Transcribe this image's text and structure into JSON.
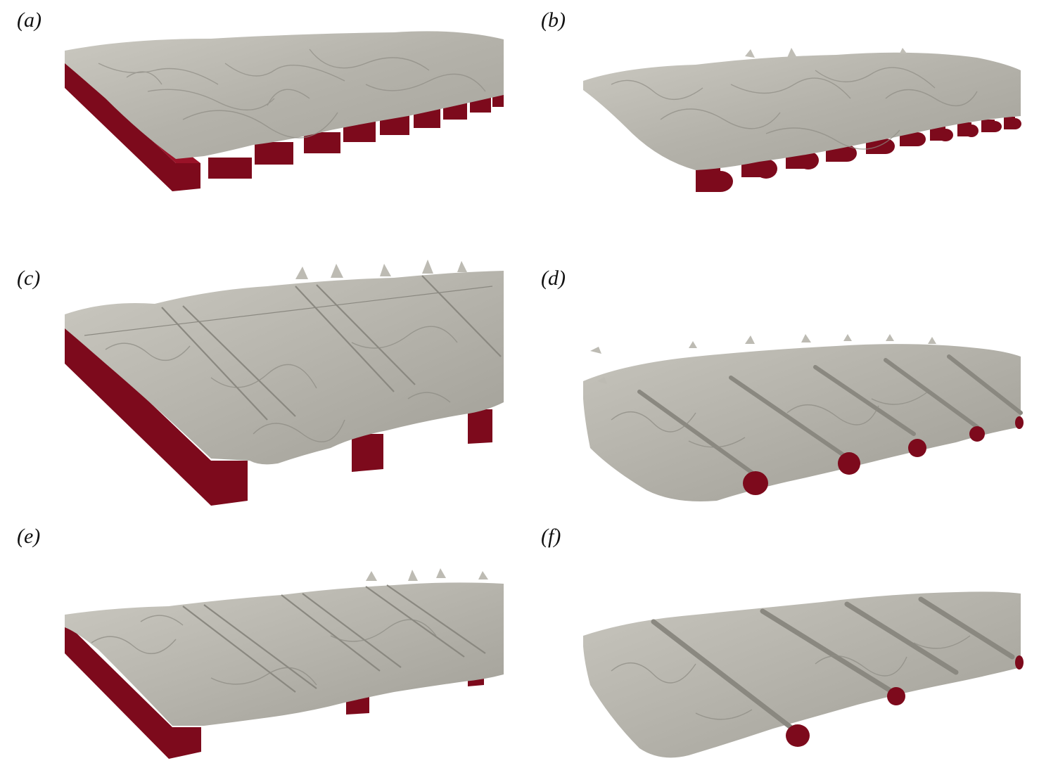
{
  "figure": {
    "panels": [
      {
        "id": "a",
        "label": "(a)",
        "element_shape": "square-bar",
        "element_colour": "#7d0a1c",
        "surface_colour": "#bdbbb3",
        "elements_visible": 11,
        "raised_ridges": false
      },
      {
        "id": "b",
        "label": "(b)",
        "element_shape": "cylinder",
        "element_colour": "#7d0a1c",
        "surface_colour": "#bdbbb3",
        "elements_visible": 10,
        "raised_ridges": false
      },
      {
        "id": "c",
        "label": "(c)",
        "element_shape": "square-bar",
        "element_colour": "#7d0a1c",
        "surface_colour": "#bdbbb3",
        "elements_visible": 3,
        "raised_ridges": true
      },
      {
        "id": "d",
        "label": "(d)",
        "element_shape": "cylinder",
        "element_colour": "#7d0a1c",
        "surface_colour": "#bdbbb3",
        "elements_visible": 5,
        "raised_ridges": true
      },
      {
        "id": "e",
        "label": "(e)",
        "element_shape": "square-bar",
        "element_colour": "#7d0a1c",
        "surface_colour": "#bdbbb3",
        "elements_visible": 3,
        "raised_ridges": true
      },
      {
        "id": "f",
        "label": "(f)",
        "element_shape": "cylinder",
        "element_colour": "#7d0a1c",
        "surface_colour": "#bdbbb3",
        "elements_visible": 3,
        "raised_ridges": true
      }
    ]
  }
}
